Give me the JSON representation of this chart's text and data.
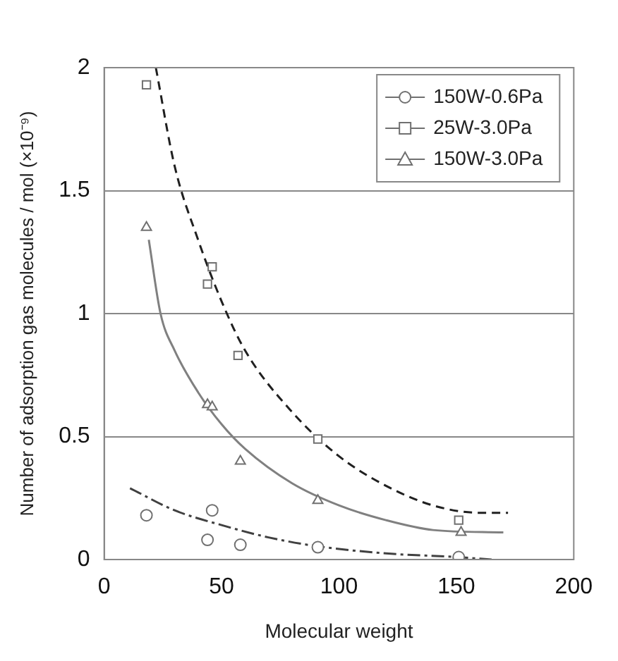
{
  "chart_data": {
    "type": "scatter",
    "xlabel": "Molecular weight",
    "ylabel": "Number of adsorption gas molecules / mol (×10⁻⁹)",
    "xlim": [
      0,
      200
    ],
    "ylim": [
      0,
      2
    ],
    "xticks": [
      0,
      50,
      100,
      150,
      200
    ],
    "yticks": [
      0,
      0.5,
      1,
      1.5,
      2
    ],
    "grid": "y",
    "legend": "top right",
    "series": [
      {
        "name": "150W-0.6Pa",
        "type": "scatter",
        "marker": "circle",
        "color": "#707070",
        "x": [
          18,
          46,
          44,
          58,
          91,
          151
        ],
        "values": [
          0.18,
          0.2,
          0.08,
          0.06,
          0.05,
          0.01
        ]
      },
      {
        "name": "25W-3.0Pa",
        "type": "scatter",
        "marker": "square",
        "color": "#707070",
        "x": [
          18,
          46,
          44,
          57,
          91,
          151
        ],
        "values": [
          1.93,
          1.19,
          1.12,
          0.83,
          0.49,
          0.16
        ]
      },
      {
        "name": "150W-3.0Pa",
        "type": "scatter",
        "marker": "triangle",
        "color": "#707070",
        "x": [
          18,
          44,
          46,
          58,
          91,
          152
        ],
        "values": [
          1.35,
          0.63,
          0.62,
          0.4,
          0.24,
          0.11
        ]
      },
      {
        "type": "line",
        "line_style": "dashdot",
        "color": "#404040",
        "x": [
          11,
          30,
          50,
          70,
          90,
          120,
          150,
          165
        ],
        "values": [
          0.29,
          0.2,
          0.14,
          0.09,
          0.055,
          0.025,
          0.01,
          0
        ]
      },
      {
        "type": "line",
        "line_style": "dashed",
        "color": "#202020",
        "x": [
          22,
          30,
          40,
          50,
          60,
          80,
          100,
          120,
          140,
          160,
          172
        ],
        "values": [
          2,
          1.6,
          1.3,
          1.05,
          0.85,
          0.6,
          0.42,
          0.3,
          0.22,
          0.19,
          0.19
        ]
      },
      {
        "type": "line",
        "line_style": "solid",
        "color": "#808080",
        "x": [
          19,
          24,
          30,
          40,
          50,
          60,
          80,
          100,
          120,
          140,
          170
        ],
        "values": [
          1.3,
          1,
          0.85,
          0.68,
          0.55,
          0.45,
          0.31,
          0.22,
          0.16,
          0.12,
          0.11
        ]
      }
    ]
  }
}
